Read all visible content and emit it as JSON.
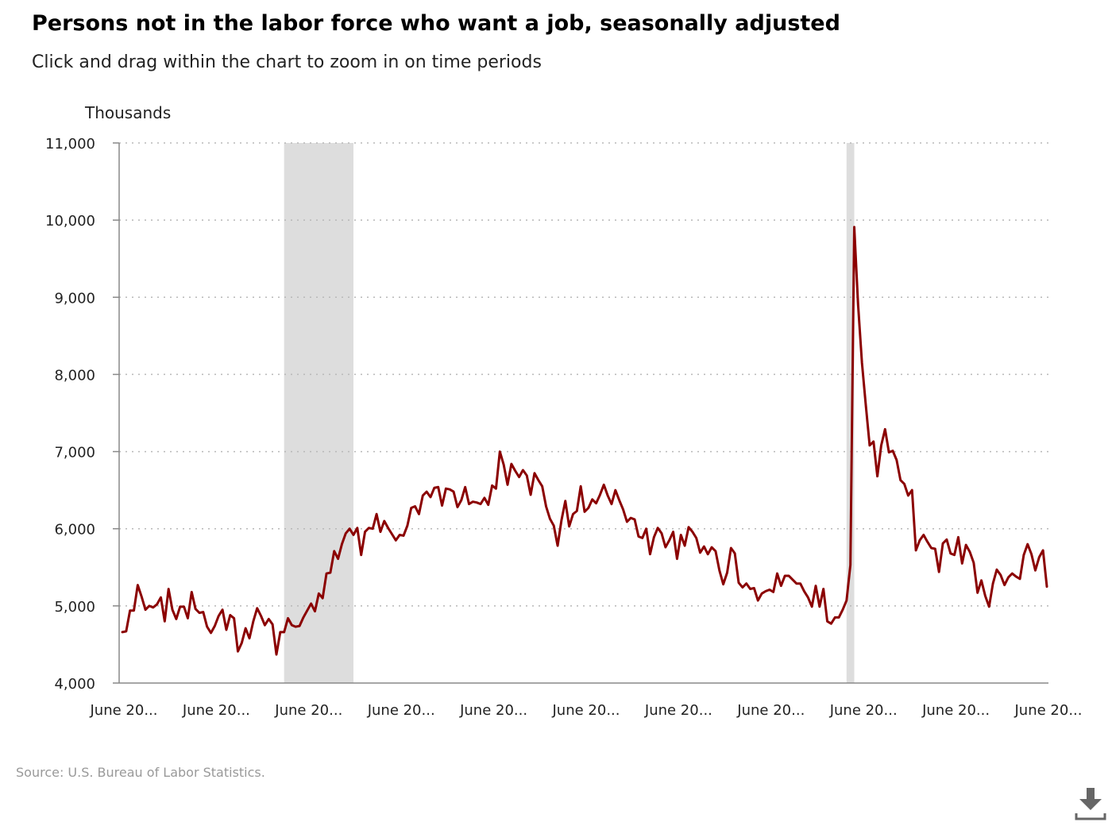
{
  "chart_data": {
    "type": "line",
    "title": "Persons not in the labor force who want a job, seasonally adjusted",
    "subtitle": "Click and drag within the chart to zoom in on time periods",
    "ylabel": "Thousands",
    "xlabel": "",
    "ylim": [
      4000,
      11000
    ],
    "yticks": [
      4000,
      5000,
      6000,
      7000,
      8000,
      9000,
      10000,
      11000
    ],
    "ytick_labels": [
      "4,000",
      "5,000",
      "6,000",
      "7,000",
      "8,000",
      "9,000",
      "10,000",
      "11,000"
    ],
    "xlim": [
      "2004-06",
      "2024-06"
    ],
    "xtick_labels": [
      "June 20...",
      "June 20...",
      "June 20...",
      "June 20...",
      "June 20...",
      "June 20...",
      "June 20...",
      "June 20...",
      "June 20...",
      "June 20...",
      "June 20..."
    ],
    "xtick_dates": [
      "2004-06",
      "2006-06",
      "2008-06",
      "2010-06",
      "2012-06",
      "2014-06",
      "2016-06",
      "2018-06",
      "2020-06",
      "2022-06",
      "2024-06"
    ],
    "grid": "horizontal-dotted",
    "legend": "none",
    "recessions": [
      {
        "start": "2007-12",
        "end": "2009-06"
      },
      {
        "start": "2020-02",
        "end": "2020-04"
      }
    ],
    "series": [
      {
        "start": "2004-06",
        "frequency": "monthly",
        "values": [
          4660,
          4670,
          4940,
          4940,
          5270,
          5120,
          4950,
          5000,
          4980,
          5020,
          5110,
          4800,
          5220,
          4950,
          4830,
          4990,
          4990,
          4840,
          5180,
          4960,
          4910,
          4920,
          4730,
          4650,
          4740,
          4870,
          4950,
          4690,
          4880,
          4840,
          4410,
          4520,
          4710,
          4580,
          4800,
          4970,
          4870,
          4750,
          4830,
          4760,
          4370,
          4660,
          4660,
          4840,
          4750,
          4730,
          4740,
          4850,
          4940,
          5030,
          4930,
          5160,
          5100,
          5420,
          5430,
          5710,
          5610,
          5800,
          5940,
          6000,
          5920,
          6010,
          5660,
          5960,
          6010,
          6000,
          6190,
          5960,
          6100,
          6010,
          5930,
          5850,
          5920,
          5910,
          6040,
          6270,
          6290,
          6190,
          6430,
          6480,
          6410,
          6530,
          6540,
          6300,
          6520,
          6510,
          6480,
          6280,
          6370,
          6540,
          6320,
          6350,
          6340,
          6320,
          6400,
          6310,
          6560,
          6520,
          7000,
          6830,
          6570,
          6840,
          6750,
          6670,
          6760,
          6690,
          6440,
          6720,
          6630,
          6550,
          6290,
          6130,
          6040,
          5780,
          6110,
          6360,
          6030,
          6190,
          6230,
          6550,
          6220,
          6270,
          6380,
          6330,
          6440,
          6570,
          6430,
          6320,
          6500,
          6370,
          6250,
          6090,
          6140,
          6120,
          5900,
          5880,
          6000,
          5670,
          5890,
          6010,
          5940,
          5760,
          5850,
          5960,
          5610,
          5920,
          5780,
          6020,
          5960,
          5880,
          5690,
          5770,
          5670,
          5760,
          5710,
          5460,
          5280,
          5430,
          5750,
          5680,
          5300,
          5240,
          5290,
          5220,
          5230,
          5070,
          5160,
          5190,
          5210,
          5180,
          5420,
          5260,
          5390,
          5390,
          5340,
          5290,
          5290,
          5190,
          5110,
          4990,
          5260,
          4990,
          5220,
          4800,
          4770,
          4850,
          4850,
          4950,
          5070,
          5530,
          9910,
          8900,
          8150,
          7600,
          7080,
          7130,
          6680,
          7080,
          7290,
          6990,
          7010,
          6890,
          6630,
          6580,
          6430,
          6500,
          5720,
          5850,
          5920,
          5830,
          5750,
          5740,
          5440,
          5810,
          5860,
          5680,
          5660,
          5890,
          5550,
          5790,
          5700,
          5560,
          5170,
          5330,
          5130,
          4990,
          5290,
          5470,
          5400,
          5270,
          5370,
          5420,
          5380,
          5350,
          5660,
          5800,
          5670,
          5460,
          5630,
          5720,
          5250
        ]
      }
    ]
  },
  "source": "Source: U.S. Bureau of Labor Statistics.",
  "download_icon": "download-icon",
  "colors": {
    "line": "#8b0000",
    "recession": "#dddddd",
    "grid": "#b8b8b8",
    "axis": "#888888"
  }
}
